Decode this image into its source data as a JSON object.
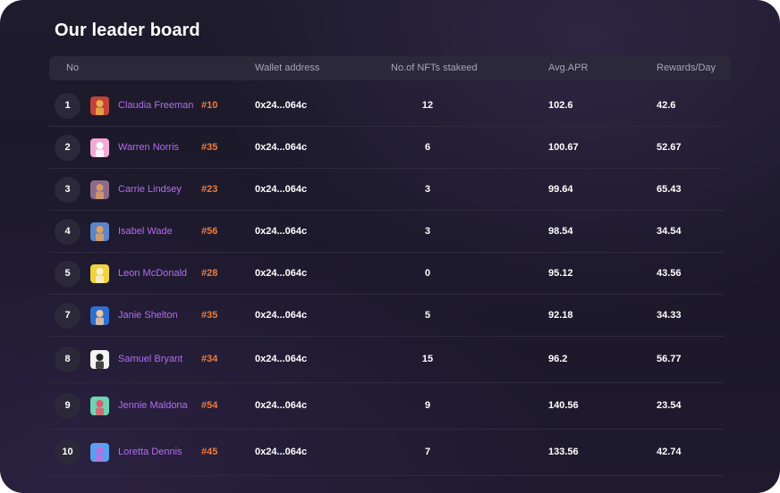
{
  "title": "Our leader board",
  "columns": {
    "no": "No",
    "wallet": "Wallet address",
    "nfts": "No.of NFTs stakeed",
    "apr": "Avg.APR",
    "rewards": "Rewards/Day"
  },
  "rows": [
    {
      "rank": "1",
      "name": "Claudia Freeman",
      "tag": "#10",
      "wallet": "0x24...064c",
      "nfts": "12",
      "apr": "102.6",
      "rewards": "42.6",
      "avatar": {
        "bg": "#c1443a",
        "fg": "#e8b04a"
      }
    },
    {
      "rank": "2",
      "name": "Warren Norris",
      "tag": "#35",
      "wallet": "0x24...064c",
      "nfts": "6",
      "apr": "100.67",
      "rewards": "52.67",
      "avatar": {
        "bg": "#f2a9d8",
        "fg": "#ffffff"
      }
    },
    {
      "rank": "3",
      "name": "Carrie Lindsey",
      "tag": "#23",
      "wallet": "0x24...064c",
      "nfts": "3",
      "apr": "99.64",
      "rewards": "65.43",
      "avatar": {
        "bg": "#8c6a8a",
        "fg": "#d99a6a"
      }
    },
    {
      "rank": "4",
      "name": "Isabel Wade",
      "tag": "#56",
      "wallet": "0x24...064c",
      "nfts": "3",
      "apr": "98.54",
      "rewards": "34.54",
      "avatar": {
        "bg": "#5b86c9",
        "fg": "#e0a060"
      }
    },
    {
      "rank": "5",
      "name": "Leon McDonald",
      "tag": "#28",
      "wallet": "0x24...064c",
      "nfts": "0",
      "apr": "95.12",
      "rewards": "43.56",
      "avatar": {
        "bg": "#f0d23c",
        "fg": "#f5f0d0"
      }
    },
    {
      "rank": "7",
      "name": "Janie Shelton",
      "tag": "#35",
      "wallet": "0x24...064c",
      "nfts": "5",
      "apr": "92.18",
      "rewards": "34.33",
      "avatar": {
        "bg": "#2f6fd0",
        "fg": "#f0c8a0"
      }
    },
    {
      "rank": "8",
      "name": "Samuel Bryant",
      "tag": "#34",
      "wallet": "0x24...064c",
      "nfts": "15",
      "apr": "96.2",
      "rewards": "56.77",
      "avatar": {
        "bg": "#f4f4f4",
        "fg": "#222222"
      }
    },
    {
      "rank": "9",
      "name": "Jennie Maldona",
      "tag": "#54",
      "wallet": "0x24...064c",
      "nfts": "9",
      "apr": "140.56",
      "rewards": "23.54",
      "avatar": {
        "bg": "#6fd3b4",
        "fg": "#e05a6a"
      }
    },
    {
      "rank": "10",
      "name": "Loretta Dennis",
      "tag": "#45",
      "wallet": "0x24...064c",
      "nfts": "7",
      "apr": "133.56",
      "rewards": "42.74",
      "avatar": {
        "bg": "#5a9ef0",
        "fg": "#b472e0"
      }
    }
  ]
}
